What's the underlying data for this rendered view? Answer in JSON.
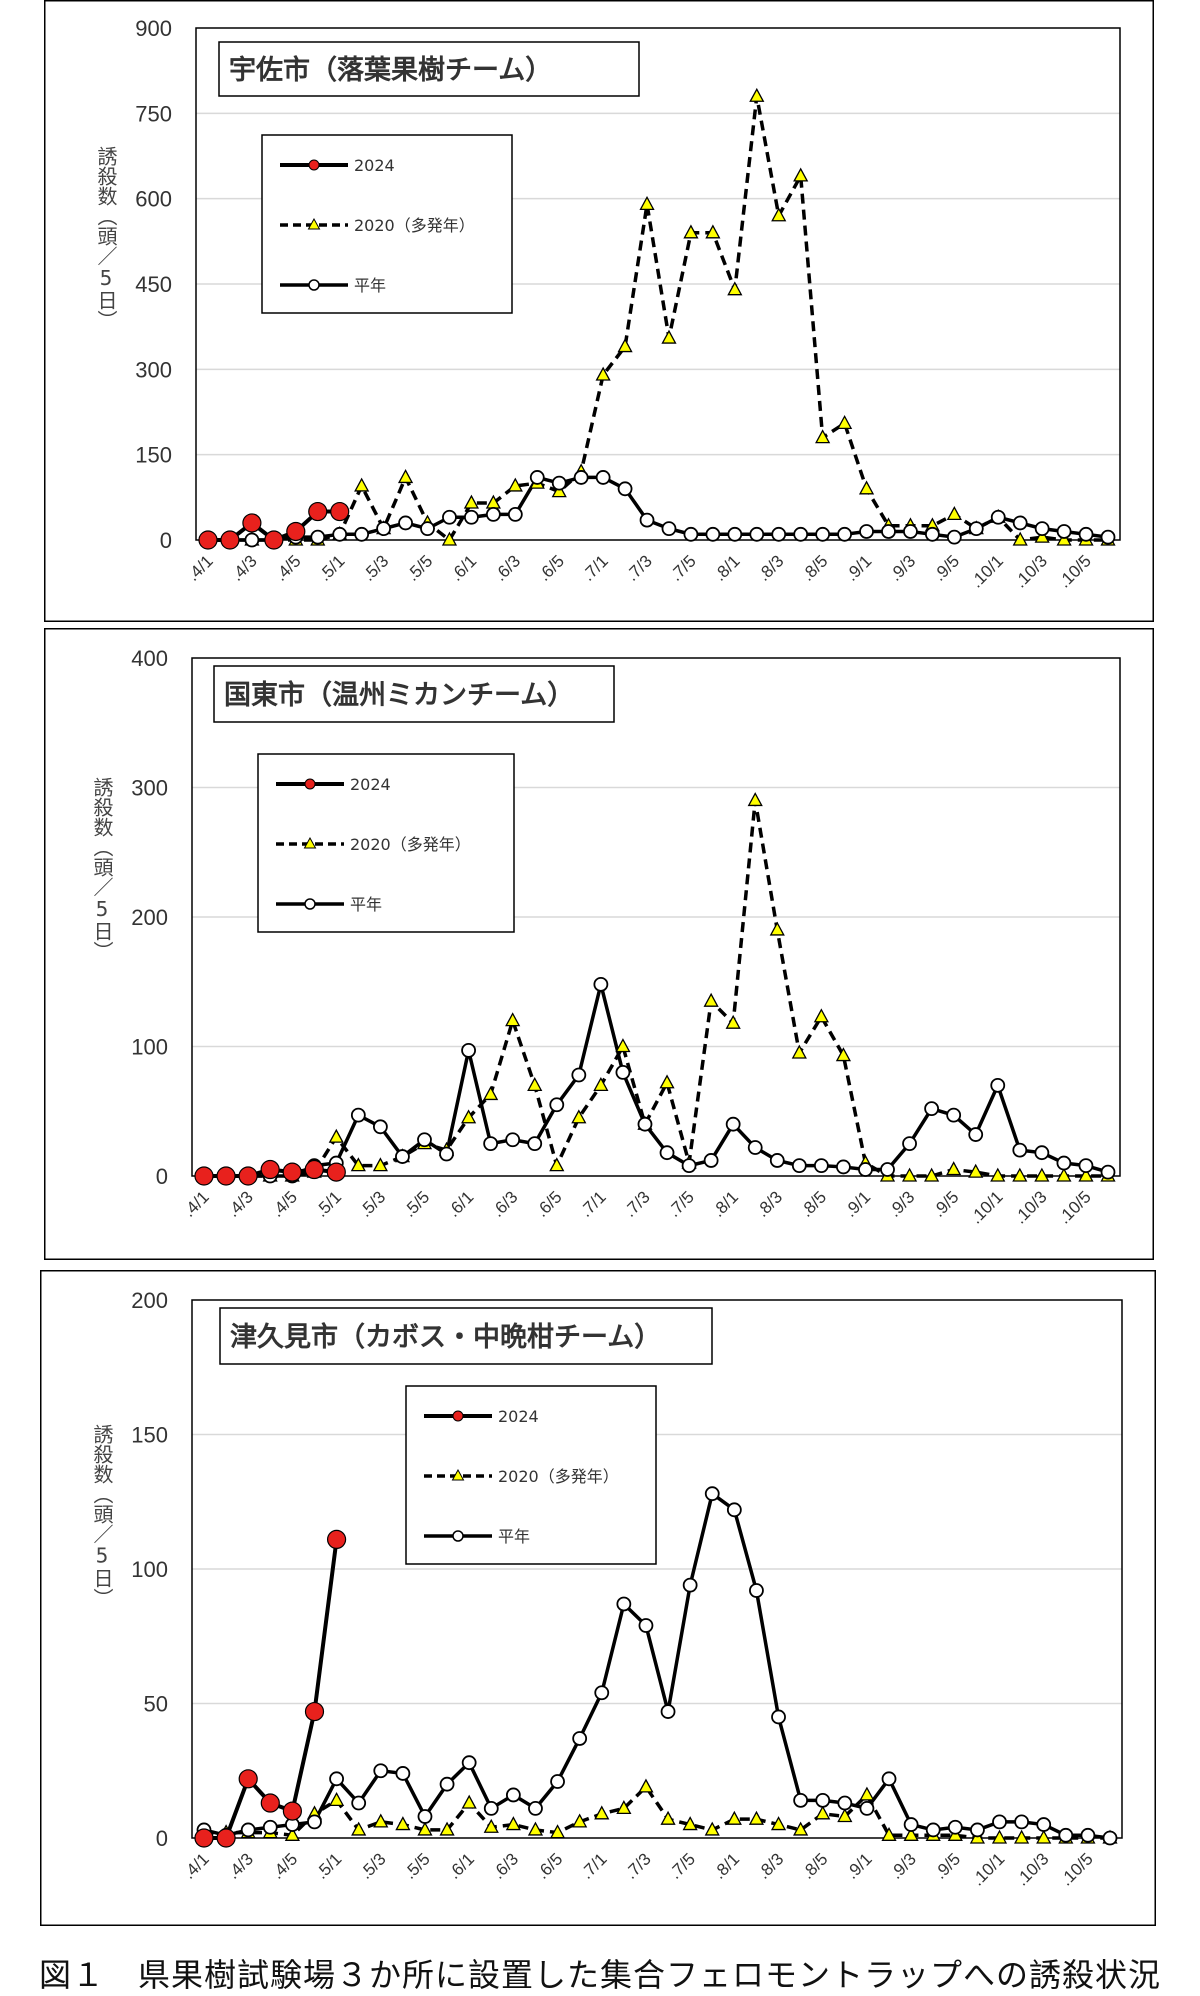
{
  "caption": "図１　県果樹試験場３か所に設置した集合フェロモントラップへの誘殺状況",
  "legend_labels": {
    "y2024": "2024",
    "y2020": "2020（多発年）",
    "avg": "平年"
  },
  "colors": {
    "y2024": "#e8211d",
    "y2020_marker": "#ffff00",
    "avg_marker": "#ffffff",
    "line": "#000000",
    "grid": "#d9d9d9"
  },
  "x_tick_labels": [
    "4/1",
    "4/3",
    "4/5",
    "5/1",
    "5/3",
    "5/5",
    "6/1",
    "6/3",
    "6/5",
    "7/1",
    "7/3",
    "7/5",
    "8/1",
    "8/3",
    "8/5",
    "9/1",
    "9/3",
    "9/5",
    "10/1",
    "10/3",
    "10/5"
  ],
  "chart_data": [
    {
      "type": "line",
      "title": "宇佐市（落葉果樹チーム）",
      "ylabel": "誘殺数（頭／5日）",
      "ylim": [
        0,
        900
      ],
      "yticks": [
        0,
        150,
        300,
        450,
        600,
        750,
        900
      ],
      "grid": true,
      "legend_position": "upper-left",
      "series": [
        {
          "name": "2024",
          "values": [
            0,
            0,
            30,
            0,
            15,
            50,
            50
          ]
        },
        {
          "name": "2020（多発年）",
          "values": [
            0,
            0,
            0,
            0,
            0,
            0,
            10,
            95,
            20,
            110,
            30,
            0,
            65,
            65,
            95,
            100,
            85,
            120,
            290,
            340,
            590,
            355,
            540,
            540,
            440,
            780,
            570,
            640,
            180,
            205,
            90,
            25,
            25,
            25,
            45,
            20,
            40,
            0,
            5,
            0,
            0,
            0
          ]
        },
        {
          "name": "平年",
          "values": [
            0,
            0,
            0,
            0,
            5,
            5,
            10,
            10,
            20,
            30,
            20,
            40,
            40,
            45,
            45,
            110,
            100,
            110,
            110,
            90,
            35,
            20,
            10,
            10,
            10,
            10,
            10,
            10,
            10,
            10,
            15,
            15,
            15,
            10,
            5,
            20,
            40,
            30,
            20,
            15,
            10,
            5
          ]
        }
      ]
    },
    {
      "type": "line",
      "title": "国東市（温州ミカンチーム）",
      "ylabel": "誘殺数（頭／5日）",
      "ylim": [
        0,
        400
      ],
      "yticks": [
        0,
        100,
        200,
        300,
        400
      ],
      "grid": true,
      "legend_position": "upper-left",
      "series": [
        {
          "name": "2024",
          "values": [
            0,
            0,
            0,
            5,
            3,
            5,
            3
          ]
        },
        {
          "name": "2020（多発年）",
          "values": [
            0,
            0,
            0,
            0,
            0,
            3,
            30,
            8,
            8,
            15,
            25,
            20,
            45,
            63,
            120,
            70,
            8,
            45,
            70,
            100,
            40,
            72,
            10,
            135,
            118,
            290,
            190,
            95,
            123,
            93,
            10,
            0,
            0,
            0,
            5,
            3,
            0,
            0,
            0,
            0,
            0,
            0
          ]
        },
        {
          "name": "平年",
          "values": [
            0,
            0,
            0,
            0,
            0,
            8,
            10,
            47,
            38,
            15,
            28,
            17,
            97,
            25,
            28,
            25,
            55,
            78,
            148,
            80,
            40,
            18,
            8,
            12,
            40,
            22,
            12,
            8,
            8,
            7,
            5,
            5,
            25,
            52,
            47,
            32,
            70,
            20,
            18,
            10,
            8,
            3
          ]
        }
      ]
    },
    {
      "type": "line",
      "title": "津久見市（カボス・中晩柑チーム）",
      "ylabel": "誘殺数（頭／5日）",
      "ylim": [
        0,
        200
      ],
      "yticks": [
        0,
        50,
        100,
        150,
        200
      ],
      "grid": true,
      "legend_position": "upper-center",
      "series": [
        {
          "name": "2024",
          "values": [
            0,
            0,
            22,
            13,
            10,
            47,
            111
          ]
        },
        {
          "name": "2020（多発年）",
          "values": [
            2,
            2,
            2,
            2,
            1,
            9,
            14,
            3,
            6,
            5,
            3,
            3,
            13,
            4,
            5,
            3,
            2,
            6,
            9,
            11,
            19,
            7,
            5,
            3,
            7,
            7,
            5,
            3,
            9,
            8,
            16,
            1,
            1,
            1,
            1,
            0,
            0,
            0,
            0,
            0,
            0,
            0
          ]
        },
        {
          "name": "平年",
          "values": [
            3,
            1,
            3,
            4,
            5,
            6,
            22,
            13,
            25,
            24,
            8,
            20,
            28,
            11,
            16,
            11,
            21,
            37,
            54,
            87,
            79,
            47,
            94,
            128,
            122,
            92,
            45,
            14,
            14,
            13,
            11,
            22,
            5,
            3,
            4,
            3,
            6,
            6,
            5,
            1,
            1,
            0
          ]
        }
      ]
    }
  ]
}
